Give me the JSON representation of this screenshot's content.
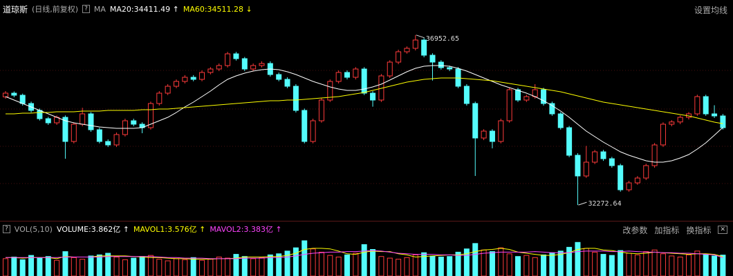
{
  "chart_data": [
    {
      "type": "candlestick",
      "title": "道琼斯",
      "subtitle": "(日线,前复权)",
      "help": "?",
      "indicator": "MA",
      "settings": "设置均线",
      "up_color": "#ff3b3b",
      "down_color": "#54fcfc",
      "ylim": [
        32000,
        37500
      ],
      "open": [
        35250,
        35353,
        35296,
        35068,
        34878,
        34650,
        34536,
        34688,
        34023,
        34498,
        34783,
        34346,
        34023,
        33928,
        34213,
        34593,
        34498,
        34403,
        35068,
        35353,
        35543,
        35676,
        35790,
        35733,
        35923,
        36018,
        36113,
        36436,
        36303,
        36018,
        36113,
        36170,
        35866,
        35733,
        35543,
        34878,
        34023,
        34593,
        35163,
        35676,
        35923,
        35790,
        36018,
        35353,
        35163,
        35828,
        36208,
        36493,
        36588,
        36816,
        36398,
        36208,
        36056,
        36018,
        35543,
        35068,
        34118,
        34308,
        34023,
        34593,
        35448,
        35163,
        35258,
        35448,
        35068,
        34783,
        34403,
        33643,
        33073,
        33453,
        33738,
        33548,
        33358,
        32693,
        32883,
        33016,
        33358,
        33928,
        34498,
        34560,
        34688,
        34783,
        35258,
        34783,
        34726
      ],
      "high": [
        35410,
        35400,
        35340,
        35120,
        34930,
        34700,
        34740,
        34740,
        34550,
        34950,
        34830,
        34400,
        34080,
        34270,
        34650,
        34650,
        34550,
        35120,
        35410,
        35600,
        35730,
        35850,
        35850,
        35980,
        36070,
        36170,
        36490,
        36490,
        36350,
        36170,
        36230,
        36230,
        35920,
        35790,
        35600,
        34930,
        34650,
        35220,
        35730,
        35980,
        35980,
        36070,
        36070,
        35410,
        35880,
        36260,
        36550,
        36640,
        36952.65,
        36870,
        36450,
        36260,
        36110,
        36070,
        35600,
        35120,
        34360,
        34360,
        34650,
        35500,
        35500,
        35310,
        35600,
        35500,
        35120,
        34830,
        34450,
        33700,
        33900,
        33790,
        33790,
        33600,
        33410,
        32940,
        33070,
        33410,
        33980,
        34550,
        34610,
        34740,
        34830,
        35310,
        35310,
        35020,
        34780
      ],
      "low": [
        35200,
        35240,
        35010,
        34820,
        34600,
        34480,
        34480,
        33548,
        33970,
        34440,
        34290,
        33970,
        33870,
        33870,
        34160,
        34440,
        34250,
        34350,
        35010,
        35300,
        35490,
        35620,
        35680,
        35680,
        35870,
        35960,
        36060,
        36250,
        35960,
        35960,
        36060,
        35810,
        35680,
        35490,
        34820,
        33970,
        33970,
        34540,
        35110,
        35620,
        35730,
        35730,
        35300,
        34980,
        35110,
        35770,
        36150,
        36440,
        36530,
        36340,
        35700,
        36000,
        35960,
        35490,
        35010,
        33073,
        34060,
        33833,
        33970,
        34540,
        35110,
        35110,
        35200,
        35010,
        34730,
        34350,
        33590,
        32272.64,
        33020,
        33400,
        33490,
        33300,
        32640,
        32640,
        32830,
        32960,
        33300,
        33870,
        34440,
        34500,
        34630,
        34730,
        34730,
        34670,
        34350
      ],
      "close": [
        35353,
        35296,
        35068,
        34878,
        34650,
        34536,
        34688,
        34023,
        34498,
        34783,
        34346,
        34023,
        33928,
        34213,
        34593,
        34498,
        34403,
        35068,
        35353,
        35543,
        35676,
        35790,
        35733,
        35923,
        36018,
        36113,
        36436,
        36303,
        36018,
        36113,
        36170,
        35866,
        35733,
        35543,
        34878,
        34023,
        34593,
        35163,
        35676,
        35923,
        35790,
        36018,
        35353,
        35163,
        35828,
        36208,
        36493,
        36588,
        36816,
        36398,
        36208,
        36056,
        36018,
        35543,
        35068,
        34118,
        34308,
        34023,
        34593,
        35448,
        35163,
        35258,
        35448,
        35068,
        34783,
        34403,
        33643,
        33073,
        33453,
        33738,
        33548,
        33358,
        32693,
        32883,
        33016,
        33358,
        33928,
        34498,
        34560,
        34688,
        34783,
        35258,
        34783,
        34726,
        34403
      ],
      "high_labels": [
        null,
        null,
        null,
        null,
        null,
        null,
        null,
        null,
        null,
        null,
        null,
        null,
        null,
        null,
        null,
        null,
        null,
        null,
        null,
        null,
        null,
        null,
        null,
        null,
        null,
        null,
        null,
        null,
        null,
        null,
        null,
        null,
        null,
        null,
        null,
        null,
        null,
        null,
        null,
        null,
        null,
        null,
        null,
        null,
        null,
        null,
        null,
        null,
        "36952.65",
        null,
        null,
        null,
        null,
        null,
        null,
        null,
        null,
        null,
        null,
        null,
        null,
        null,
        null,
        null,
        null,
        null,
        null,
        null,
        null,
        null,
        null,
        null,
        null,
        null,
        null,
        null,
        null,
        null,
        null,
        null,
        null,
        null,
        null,
        null,
        null
      ],
      "low_labels": [
        null,
        null,
        null,
        null,
        null,
        null,
        null,
        null,
        null,
        null,
        null,
        null,
        null,
        null,
        null,
        null,
        null,
        null,
        null,
        null,
        null,
        null,
        null,
        null,
        null,
        null,
        null,
        null,
        null,
        null,
        null,
        null,
        null,
        null,
        null,
        null,
        null,
        null,
        null,
        null,
        null,
        null,
        null,
        null,
        null,
        null,
        null,
        null,
        null,
        null,
        null,
        null,
        null,
        null,
        null,
        null,
        null,
        null,
        null,
        null,
        null,
        null,
        null,
        null,
        null,
        null,
        null,
        "32272.64",
        null,
        null,
        null,
        null,
        null,
        null,
        null,
        null,
        null,
        null,
        null,
        null,
        null,
        null,
        null,
        null,
        null
      ],
      "lines": [
        {
          "label": "MA20:34411.49 ↑",
          "color": "#ffffff",
          "values": [
            35258,
            35163,
            35068,
            34973,
            34878,
            34783,
            34688,
            34593,
            34536,
            34498,
            34460,
            34422,
            34403,
            34384,
            34384,
            34384,
            34403,
            34498,
            34593,
            34688,
            34821,
            34973,
            35106,
            35258,
            35410,
            35581,
            35733,
            35828,
            35904,
            35961,
            35999,
            36018,
            35999,
            35942,
            35866,
            35771,
            35676,
            35600,
            35524,
            35467,
            35429,
            35429,
            35467,
            35524,
            35600,
            35714,
            35828,
            35942,
            36037,
            36094,
            36113,
            36113,
            36094,
            36037,
            35961,
            35866,
            35771,
            35676,
            35581,
            35505,
            35429,
            35353,
            35258,
            35144,
            35011,
            34859,
            34688,
            34498,
            34308,
            34156,
            34004,
            33871,
            33738,
            33643,
            33567,
            33491,
            33453,
            33453,
            33491,
            33567,
            33662,
            33814,
            33985,
            34194,
            34411.49
          ]
        },
        {
          "label": "MA60:34511.28 ↓",
          "color": "#ffff00",
          "values": [
            34783,
            34783,
            34802,
            34802,
            34821,
            34821,
            34840,
            34840,
            34840,
            34859,
            34859,
            34859,
            34878,
            34878,
            34878,
            34878,
            34897,
            34897,
            34916,
            34916,
            34935,
            34954,
            34973,
            34992,
            35011,
            35030,
            35049,
            35068,
            35087,
            35106,
            35125,
            35144,
            35144,
            35163,
            35163,
            35182,
            35201,
            35220,
            35239,
            35258,
            35296,
            35334,
            35372,
            35429,
            35486,
            35543,
            35600,
            35657,
            35695,
            35733,
            35752,
            35771,
            35771,
            35771,
            35752,
            35733,
            35714,
            35695,
            35657,
            35619,
            35581,
            35543,
            35505,
            35467,
            35429,
            35391,
            35334,
            35277,
            35220,
            35163,
            35106,
            35068,
            35030,
            34992,
            34954,
            34916,
            34878,
            34840,
            34802,
            34764,
            34726,
            34669,
            34612,
            34555,
            34511.28
          ]
        }
      ]
    },
    {
      "type": "bar",
      "help": "?",
      "indicator": "VOL(5,10)",
      "label": "VOLUME:3.862亿 ↑",
      "color": "#ffffff",
      "ylim": [
        0,
        7
      ],
      "values": [
        3.2,
        3.5,
        3.0,
        3.8,
        3.3,
        3.6,
        2.9,
        4.5,
        3.4,
        3.1,
        3.7,
        3.9,
        4.2,
        3.5,
        3.0,
        3.3,
        3.6,
        3.8,
        3.1,
        2.8,
        3.2,
        3.0,
        3.4,
        2.9,
        3.1,
        3.5,
        3.3,
        4.0,
        3.6,
        3.2,
        3.4,
        3.9,
        4.1,
        4.6,
        5.2,
        6.5,
        5.0,
        4.4,
        3.8,
        3.5,
        3.9,
        4.2,
        5.8,
        4.9,
        3.6,
        3.3,
        3.1,
        3.4,
        3.9,
        4.3,
        3.7,
        3.5,
        3.6,
        4.4,
        5.0,
        6.0,
        4.8,
        4.5,
        5.2,
        4.1,
        3.6,
        3.8,
        3.4,
        3.9,
        4.3,
        4.6,
        5.3,
        6.2,
        5.1,
        4.4,
        4.0,
        3.8,
        4.7,
        4.2,
        3.9,
        4.5,
        4.8,
        4.1,
        3.7,
        3.5,
        3.9,
        4.6,
        4.0,
        3.7,
        3.862
      ],
      "lines": [
        {
          "label": "MAVOL1:3.576亿 ↑",
          "color": "#ffff00",
          "values": [
            3.4,
            3.4,
            3.3,
            3.4,
            3.4,
            3.4,
            3.2,
            3.6,
            3.5,
            3.5,
            3.5,
            3.7,
            3.7,
            3.7,
            3.7,
            3.6,
            3.5,
            3.4,
            3.4,
            3.3,
            3.2,
            3.2,
            3.1,
            3.1,
            3.1,
            3.2,
            3.2,
            3.3,
            3.5,
            3.5,
            3.5,
            3.6,
            3.6,
            3.8,
            4.2,
            4.9,
            5.1,
            5.1,
            5.0,
            4.6,
            4.1,
            4.0,
            4.4,
            4.6,
            4.5,
            4.5,
            4.1,
            3.9,
            3.5,
            3.6,
            3.7,
            3.8,
            3.9,
            3.9,
            4.1,
            4.5,
            4.8,
            4.9,
            5.1,
            4.9,
            4.4,
            4.2,
            4.0,
            3.8,
            3.8,
            4.0,
            4.3,
            4.9,
            5.1,
            5.1,
            4.8,
            4.7,
            4.4,
            4.2,
            4.1,
            4.2,
            4.4,
            4.3,
            4.2,
            4.1,
            4.0,
            4.1,
            4.1,
            4.0,
            3.576
          ]
        },
        {
          "label": "MAVOL2:3.383亿 ↑",
          "color": "#ff44ff",
          "values": [
            3.4,
            3.4,
            3.4,
            3.4,
            3.4,
            3.4,
            3.4,
            3.5,
            3.5,
            3.5,
            3.5,
            3.5,
            3.6,
            3.6,
            3.6,
            3.6,
            3.6,
            3.6,
            3.5,
            3.4,
            3.4,
            3.3,
            3.3,
            3.3,
            3.2,
            3.2,
            3.2,
            3.2,
            3.3,
            3.3,
            3.3,
            3.4,
            3.4,
            3.5,
            3.7,
            4.0,
            4.2,
            4.3,
            4.4,
            4.4,
            4.5,
            4.5,
            4.6,
            4.7,
            4.6,
            4.4,
            4.2,
            4.1,
            4.0,
            4.0,
            4.0,
            3.9,
            3.9,
            3.8,
            3.8,
            4.0,
            4.2,
            4.3,
            4.4,
            4.4,
            4.4,
            4.4,
            4.5,
            4.4,
            4.3,
            4.3,
            4.3,
            4.5,
            4.6,
            4.6,
            4.6,
            4.5,
            4.5,
            4.6,
            4.5,
            4.4,
            4.4,
            4.3,
            4.3,
            4.2,
            4.2,
            4.1,
            4.0,
            3.9,
            3.383
          ]
        }
      ],
      "buttons": [
        "改参数",
        "加指标",
        "换指标"
      ],
      "close": "✕"
    }
  ]
}
